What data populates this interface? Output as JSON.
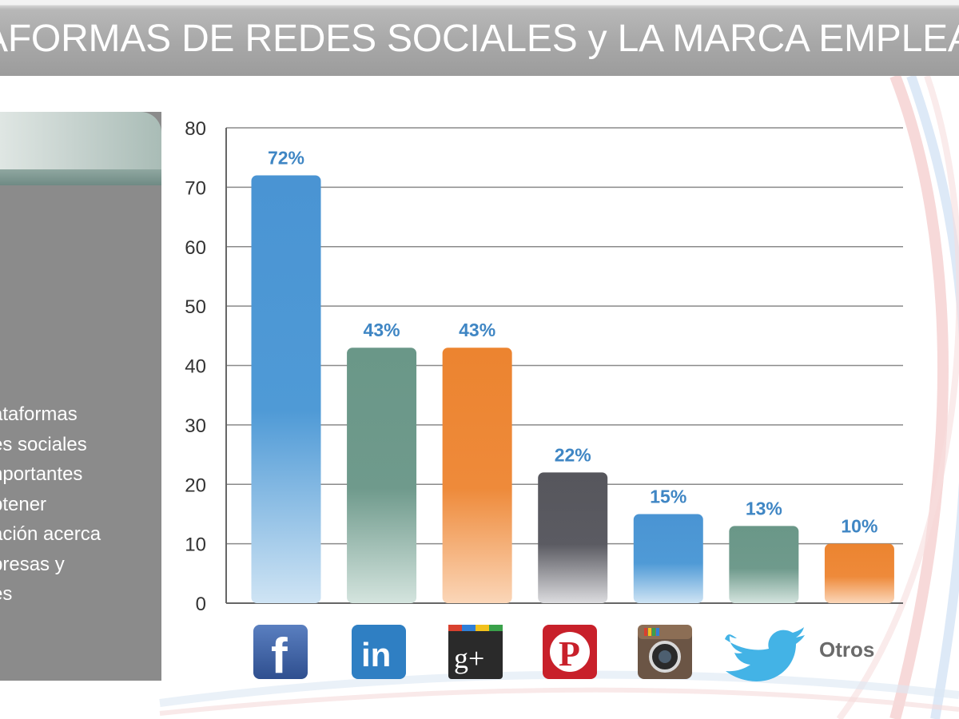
{
  "title": "AFORMAS DE REDES SOCIALES y LA MARCA EMPLEADO",
  "side_panel": {
    "lines": [
      "ataformas",
      "es sociales",
      "nportantes",
      "btener",
      "ación acerca",
      "presas y",
      "es"
    ]
  },
  "colors": {
    "blue": "#4f9ad6",
    "green": "#6f9a8c",
    "orange": "#ee8a3a",
    "dark": "#5b5b62",
    "label": "#3f86c4"
  },
  "chart_data": {
    "type": "bar",
    "categories": [
      "facebook-icon",
      "linkedin-icon",
      "google-plus-icon",
      "pinterest-icon",
      "instagram-icon",
      "twitter-icon",
      "Otros"
    ],
    "values": [
      72,
      43,
      43,
      22,
      15,
      13,
      10
    ],
    "data_labels": [
      "72%",
      "43%",
      "43%",
      "22%",
      "15%",
      "13%",
      "10%"
    ],
    "bar_colors": [
      "blue",
      "green",
      "orange",
      "dark",
      "blue",
      "green",
      "orange"
    ],
    "yticks": [
      "0",
      "10",
      "20",
      "30",
      "40",
      "50",
      "60",
      "70",
      "80"
    ],
    "ylim": [
      0,
      80
    ],
    "grid": true,
    "title": "",
    "xlabel": "",
    "ylabel": "",
    "category_labels": {
      "facebook": "f",
      "linkedin": "in",
      "google_plus": "g+",
      "pinterest": "P",
      "other": "Otros"
    }
  }
}
